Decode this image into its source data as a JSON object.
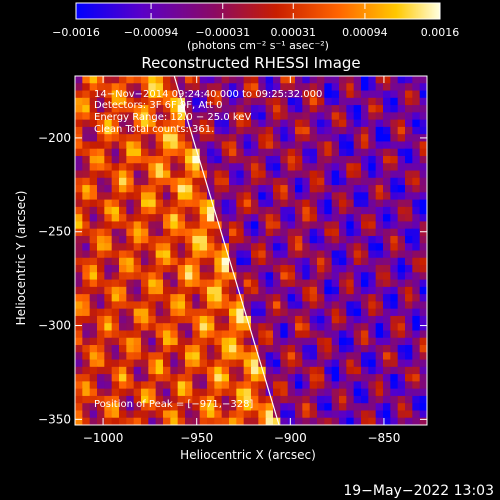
{
  "chart_data": {
    "type": "heatmap",
    "title": "Reconstructed RHESSI Image",
    "xlabel": "Heliocentric X (arcsec)",
    "ylabel": "Heliocentric Y (arcsec)",
    "x_range": [
      -1015,
      -827
    ],
    "y_range": [
      -353,
      -167
    ],
    "x_ticks": [
      {
        "value": -1000,
        "label": "−1000"
      },
      {
        "value": -950,
        "label": "−950"
      },
      {
        "value": -900,
        "label": "−900"
      },
      {
        "value": -850,
        "label": "−850"
      }
    ],
    "y_ticks": [
      {
        "value": -200,
        "label": "−200"
      },
      {
        "value": -250,
        "label": "−250"
      },
      {
        "value": -300,
        "label": "−300"
      },
      {
        "value": -350,
        "label": "−350"
      }
    ],
    "colorbar": {
      "range": [
        -0.0016,
        0.0016
      ],
      "ticks": [
        {
          "value": -0.0016,
          "label": "−0.0016"
        },
        {
          "value": -0.00094,
          "label": "−0.00094"
        },
        {
          "value": -0.00031,
          "label": "−0.00031"
        },
        {
          "value": 0.00031,
          "label": "0.00031"
        },
        {
          "value": 0.00094,
          "label": "0.00094"
        },
        {
          "value": 0.0016,
          "label": "0.0016"
        }
      ],
      "units_label": "(photons cm⁻² s⁻¹ asec⁻²)",
      "colormap": [
        "#0000ff",
        "#5a00c8",
        "#8b0a64",
        "#c81e00",
        "#ff6400",
        "#ffc800",
        "#ffffe0"
      ]
    },
    "annotations": [
      "14−Nov−2014 09:24:40.000 to 09:25:32.000",
      "Detectors: 3F 6F 9F, Att 0",
      "Energy Range: 12.0 − 25.0 keV",
      "Clean    Total counts: 361."
    ],
    "limb_line": {
      "from": [
        -962,
        -167
      ],
      "to": [
        -906,
        -353
      ]
    },
    "position_text": "Position of Peak = [−971,−328]",
    "timestamp": "19−May−2022 13:03"
  }
}
